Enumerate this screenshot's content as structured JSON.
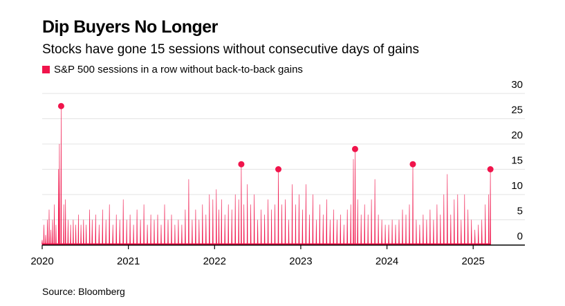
{
  "header": {
    "title": "Dip Buyers No Longer",
    "subtitle": "Stocks have gone 15 sessions without consecutive days of gains"
  },
  "footer": {
    "source": "Source: Bloomberg"
  },
  "colors": {
    "series": "#f0144b",
    "grid": "#e3e3e3",
    "axis": "#000000"
  },
  "chart_data": {
    "type": "area",
    "title": "Dip Buyers No Longer",
    "subtitle": "Stocks have gone 15 sessions without consecutive days of gains",
    "xlabel": "",
    "ylabel": "",
    "ylim": [
      0,
      30
    ],
    "xlim": [
      2020.0,
      2025.6
    ],
    "yticks": [
      "30",
      "25",
      "20",
      "15",
      "10",
      "5",
      "0"
    ],
    "xticks": [
      {
        "label": "2020",
        "value": 2020.0
      },
      {
        "label": "2021",
        "value": 2021.0
      },
      {
        "label": "2022",
        "value": 2022.0
      },
      {
        "label": "2023",
        "value": 2023.0
      },
      {
        "label": "2024",
        "value": 2024.0
      },
      {
        "label": "2025",
        "value": 2025.0
      }
    ],
    "grid": true,
    "y_axis_position": "right",
    "legend": [
      "S&P 500 sessions in a row without back-to-back gains"
    ],
    "series": [
      {
        "name": "S&P 500 sessions in a row without back-to-back gains",
        "peaks": [
          [
            2020.0,
            1
          ],
          [
            2020.02,
            4
          ],
          [
            2020.04,
            2
          ],
          [
            2020.06,
            5
          ],
          [
            2020.08,
            7
          ],
          [
            2020.1,
            3
          ],
          [
            2020.12,
            5
          ],
          [
            2020.14,
            8
          ],
          [
            2020.16,
            4
          ],
          [
            2020.19,
            15
          ],
          [
            2020.2,
            20
          ],
          [
            2020.22,
            27.5
          ],
          [
            2020.25,
            8
          ],
          [
            2020.27,
            9
          ],
          [
            2020.3,
            5
          ],
          [
            2020.33,
            4
          ],
          [
            2020.36,
            5
          ],
          [
            2020.39,
            4
          ],
          [
            2020.42,
            6
          ],
          [
            2020.45,
            4
          ],
          [
            2020.48,
            5
          ],
          [
            2020.51,
            4
          ],
          [
            2020.55,
            7
          ],
          [
            2020.58,
            5
          ],
          [
            2020.62,
            6
          ],
          [
            2020.66,
            4
          ],
          [
            2020.7,
            7
          ],
          [
            2020.74,
            5
          ],
          [
            2020.78,
            8
          ],
          [
            2020.82,
            4
          ],
          [
            2020.86,
            6
          ],
          [
            2020.9,
            5
          ],
          [
            2020.94,
            9
          ],
          [
            2020.98,
            5
          ],
          [
            2021.02,
            6
          ],
          [
            2021.06,
            4
          ],
          [
            2021.1,
            7
          ],
          [
            2021.14,
            5
          ],
          [
            2021.18,
            8
          ],
          [
            2021.22,
            4
          ],
          [
            2021.26,
            6
          ],
          [
            2021.3,
            5
          ],
          [
            2021.34,
            6
          ],
          [
            2021.38,
            4
          ],
          [
            2021.42,
            8
          ],
          [
            2021.46,
            5
          ],
          [
            2021.5,
            6
          ],
          [
            2021.54,
            4
          ],
          [
            2021.58,
            5
          ],
          [
            2021.62,
            4
          ],
          [
            2021.66,
            7
          ],
          [
            2021.7,
            13
          ],
          [
            2021.74,
            5
          ],
          [
            2021.78,
            7
          ],
          [
            2021.82,
            5
          ],
          [
            2021.86,
            8
          ],
          [
            2021.9,
            6
          ],
          [
            2021.94,
            10
          ],
          [
            2021.98,
            9
          ],
          [
            2022.02,
            11
          ],
          [
            2022.05,
            7
          ],
          [
            2022.08,
            9
          ],
          [
            2022.12,
            6
          ],
          [
            2022.16,
            8
          ],
          [
            2022.2,
            7
          ],
          [
            2022.24,
            10
          ],
          [
            2022.28,
            9
          ],
          [
            2022.31,
            16
          ],
          [
            2022.34,
            8
          ],
          [
            2022.38,
            12
          ],
          [
            2022.42,
            8
          ],
          [
            2022.46,
            10
          ],
          [
            2022.5,
            5
          ],
          [
            2022.54,
            7
          ],
          [
            2022.58,
            6
          ],
          [
            2022.62,
            9
          ],
          [
            2022.66,
            7
          ],
          [
            2022.7,
            8
          ],
          [
            2022.74,
            15
          ],
          [
            2022.78,
            8
          ],
          [
            2022.82,
            9
          ],
          [
            2022.86,
            5
          ],
          [
            2022.9,
            12
          ],
          [
            2022.94,
            8
          ],
          [
            2022.98,
            10
          ],
          [
            2023.02,
            7
          ],
          [
            2023.06,
            12
          ],
          [
            2023.1,
            6
          ],
          [
            2023.14,
            10
          ],
          [
            2023.18,
            5
          ],
          [
            2023.22,
            8
          ],
          [
            2023.26,
            6
          ],
          [
            2023.3,
            9
          ],
          [
            2023.34,
            5
          ],
          [
            2023.38,
            7
          ],
          [
            2023.42,
            5
          ],
          [
            2023.46,
            6
          ],
          [
            2023.5,
            4
          ],
          [
            2023.54,
            7
          ],
          [
            2023.58,
            8
          ],
          [
            2023.61,
            17
          ],
          [
            2023.63,
            19
          ],
          [
            2023.66,
            9
          ],
          [
            2023.7,
            6
          ],
          [
            2023.74,
            8
          ],
          [
            2023.78,
            6
          ],
          [
            2023.82,
            9
          ],
          [
            2023.86,
            13
          ],
          [
            2023.9,
            6
          ],
          [
            2023.94,
            5
          ],
          [
            2023.98,
            4
          ],
          [
            2024.02,
            4
          ],
          [
            2024.06,
            5
          ],
          [
            2024.1,
            4
          ],
          [
            2024.14,
            5
          ],
          [
            2024.18,
            7
          ],
          [
            2024.22,
            6
          ],
          [
            2024.26,
            8
          ],
          [
            2024.3,
            16
          ],
          [
            2024.34,
            5
          ],
          [
            2024.38,
            4
          ],
          [
            2024.42,
            6
          ],
          [
            2024.46,
            5
          ],
          [
            2024.5,
            7
          ],
          [
            2024.54,
            5
          ],
          [
            2024.58,
            8
          ],
          [
            2024.62,
            6
          ],
          [
            2024.66,
            10
          ],
          [
            2024.7,
            14
          ],
          [
            2024.74,
            6
          ],
          [
            2024.78,
            9
          ],
          [
            2024.82,
            10
          ],
          [
            2024.86,
            5
          ],
          [
            2024.9,
            10
          ],
          [
            2024.94,
            7
          ],
          [
            2024.98,
            5
          ],
          [
            2025.02,
            3
          ],
          [
            2025.06,
            4
          ],
          [
            2025.1,
            5
          ],
          [
            2025.14,
            8
          ],
          [
            2025.18,
            10
          ],
          [
            2025.2,
            15
          ]
        ],
        "highlighted_points": [
          {
            "x": 2020.22,
            "y": 27.5
          },
          {
            "x": 2022.31,
            "y": 16
          },
          {
            "x": 2022.74,
            "y": 15
          },
          {
            "x": 2023.63,
            "y": 19
          },
          {
            "x": 2024.3,
            "y": 16
          },
          {
            "x": 2025.2,
            "y": 15
          }
        ]
      }
    ]
  }
}
